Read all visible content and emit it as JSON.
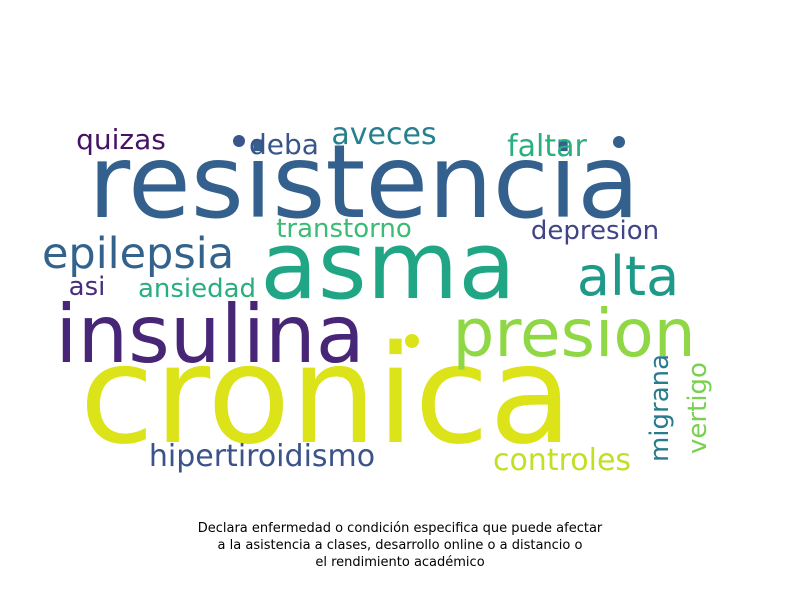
{
  "wordcloud": {
    "words": [
      {
        "text": "resistencia",
        "color": "#33608d"
      },
      {
        "text": "asma",
        "color": "#21a685"
      },
      {
        "text": "cronica",
        "color": "#dce319"
      },
      {
        "text": "insulina",
        "color": "#482677"
      },
      {
        "text": "presion",
        "color": "#8fd744"
      },
      {
        "text": "alta",
        "color": "#1f9a8a"
      },
      {
        "text": "epilepsia",
        "color": "#33638d"
      },
      {
        "text": "quizas",
        "color": "#471164"
      },
      {
        "text": "deba",
        "color": "#3a548c"
      },
      {
        "text": "aveces",
        "color": "#27808e"
      },
      {
        "text": "faltar",
        "color": "#2ab07f"
      },
      {
        "text": "transtorno",
        "color": "#3bbb75"
      },
      {
        "text": "depresion",
        "color": "#414487"
      },
      {
        "text": "asi",
        "color": "#472d7b"
      },
      {
        "text": "ansiedad",
        "color": "#29af7f"
      },
      {
        "text": "hipertiroidismo",
        "color": "#3b528b"
      },
      {
        "text": "controles",
        "color": "#c2df23"
      },
      {
        "text": "migrana",
        "color": "#287c8e"
      },
      {
        "text": "vertigo",
        "color": "#7ad151"
      }
    ],
    "dots": [
      {
        "color": "#3a548c"
      },
      {
        "color": "#33608d"
      },
      {
        "color": "#dce319"
      }
    ]
  },
  "caption": {
    "line1": "Declara enfermedad o condición especifica que puede afectar",
    "line2": "a la asistencia a clases, desarrollo online o a distancio o",
    "line3": "el rendimiento académico"
  }
}
